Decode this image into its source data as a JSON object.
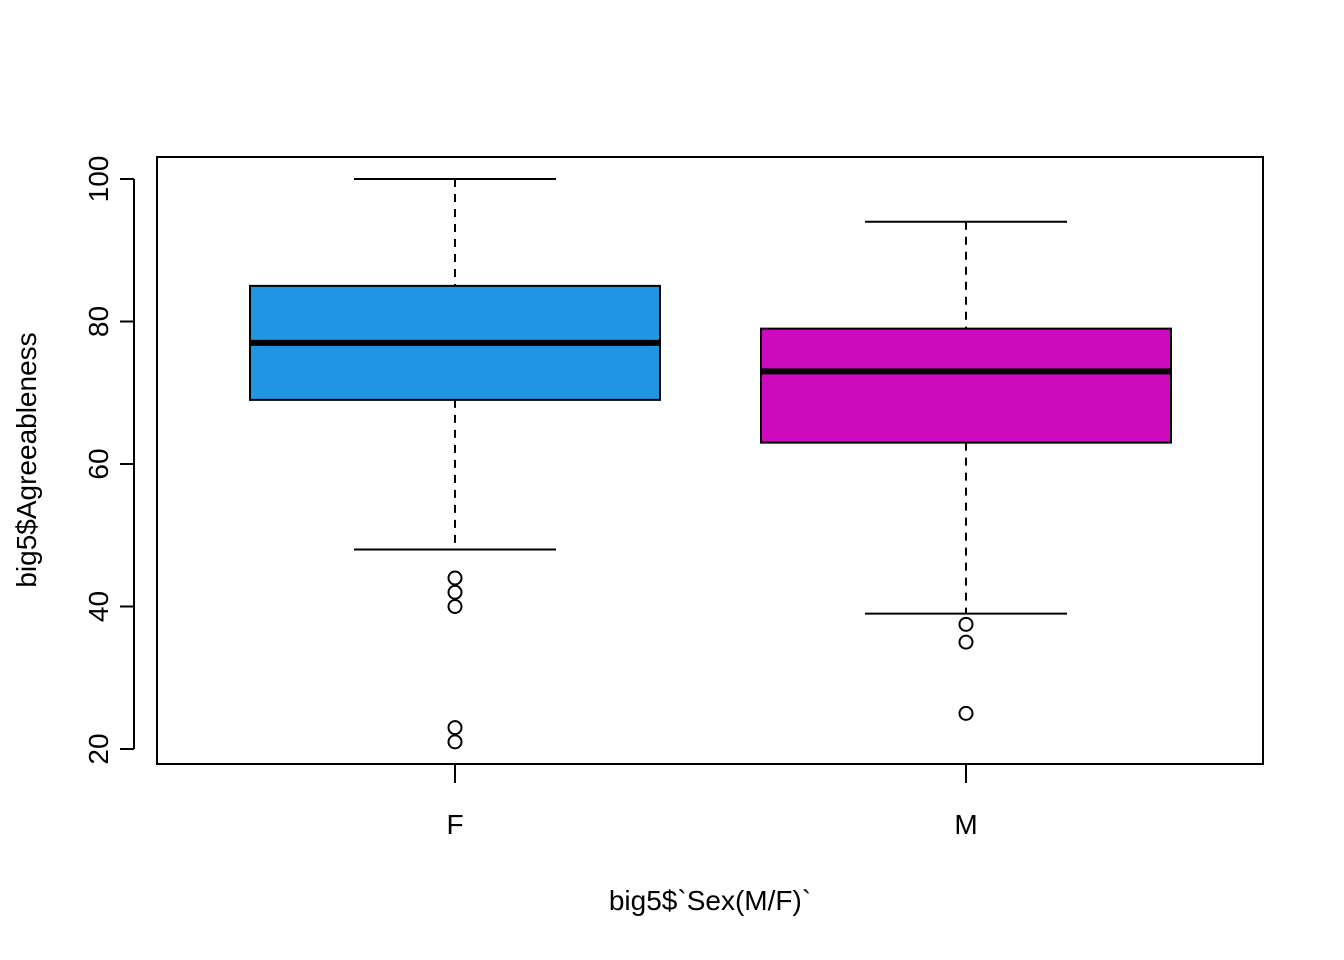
{
  "chart_data": {
    "type": "boxplot",
    "xlabel": "big5$`Sex(M/F)`",
    "ylabel": "big5$Agreeableness",
    "ylim": [
      18,
      101
    ],
    "yticks": [
      20,
      40,
      60,
      80,
      100
    ],
    "ytick_labels": [
      "20",
      "40",
      "60",
      "80",
      "100"
    ],
    "grid": false,
    "legend": "none",
    "categories": [
      "F",
      "M"
    ],
    "boxes": [
      {
        "category": "F",
        "color": "#2294E4",
        "whisker_low": 48,
        "q1": 69,
        "median": 77,
        "q3": 85,
        "whisker_high": 100,
        "outliers": [
          44,
          42,
          40,
          23,
          21
        ]
      },
      {
        "category": "M",
        "color": "#CD0BBC",
        "whisker_low": 39,
        "q1": 63,
        "median": 73,
        "q3": 79,
        "whisker_high": 94,
        "outliers": [
          37.5,
          35,
          25
        ]
      }
    ]
  }
}
